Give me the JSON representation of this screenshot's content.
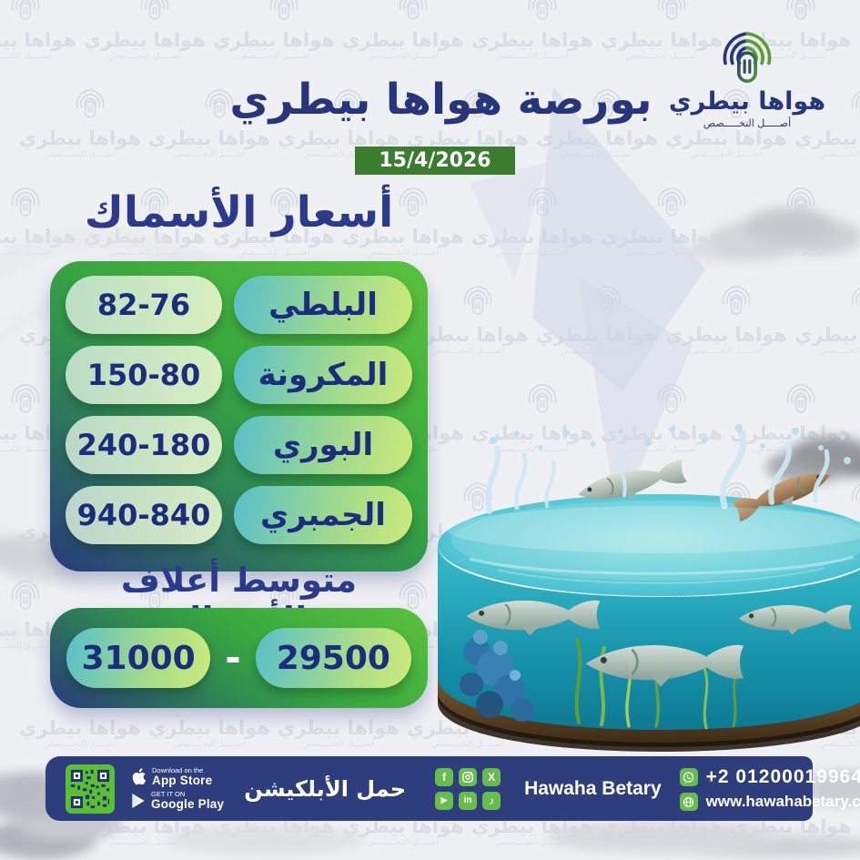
{
  "header": {
    "title": "بورصة هواها بيطري",
    "date": "15/4/2026"
  },
  "logo": {
    "name": "هواها بيطري",
    "tagline": "أصـــــل التخـــــصص"
  },
  "watermark": {
    "line1": "هواها بيطري",
    "line2": "أصـــــل التخـــــصص"
  },
  "fish_prices": {
    "title": "أسعار الأسماك",
    "rows": [
      {
        "name": "البلطي",
        "range": "82-76"
      },
      {
        "name": "المكرونة",
        "range": "150-80"
      },
      {
        "name": "البوري",
        "range": "240-180"
      },
      {
        "name": "الجمبري",
        "range": "940-840"
      }
    ]
  },
  "feed": {
    "title": "متوسط أعلاف الأسماك",
    "low": "29500",
    "high": "31000",
    "separator": "-"
  },
  "footer": {
    "download_label": "حمل الأبلكيشن",
    "app_store": {
      "line1": "Download on the",
      "line2": "App Store"
    },
    "google_play": {
      "line1": "GET IT ON",
      "line2": "Google Play"
    },
    "brand": "Hawaha Betary",
    "phone": "+2 01200019964",
    "website": "www.hawahabetary.com",
    "social": [
      {
        "name": "facebook",
        "glyph": "f"
      },
      {
        "name": "instagram",
        "glyph": ""
      },
      {
        "name": "x",
        "glyph": "X"
      },
      {
        "name": "youtube",
        "glyph": "▶"
      },
      {
        "name": "linkedin",
        "glyph": "in"
      },
      {
        "name": "tiktok",
        "glyph": "♪"
      }
    ]
  },
  "colors": {
    "navy": "#27357d",
    "bar_navy": "#2e3e7d",
    "panel_green": "#3ba83e",
    "badge_green": "#3b7d2f",
    "icon_green": "#66bd4b",
    "pill_teal": "#58bfca",
    "pill_lime": "#cdea7a"
  }
}
